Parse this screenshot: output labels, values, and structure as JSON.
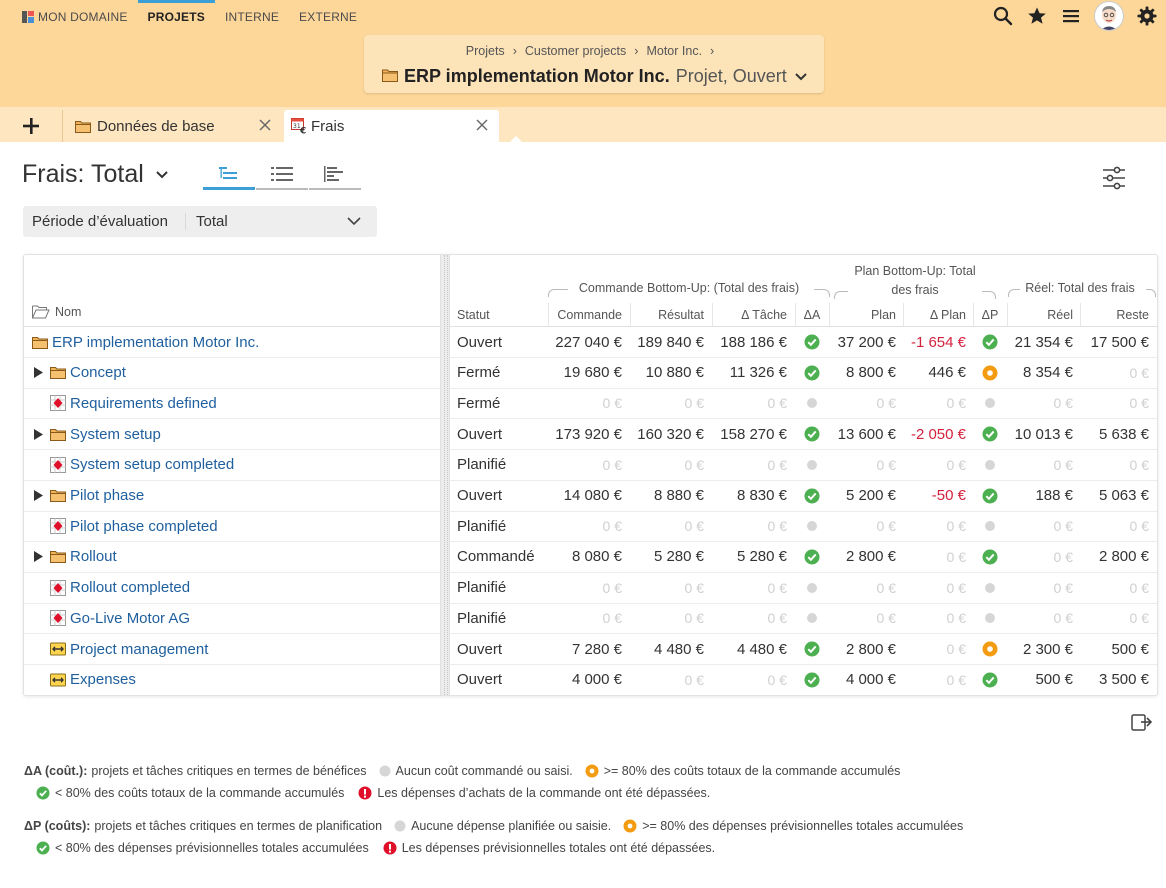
{
  "nav": {
    "items": [
      {
        "label": "MON DOMAINE"
      },
      {
        "label": "PROJETS"
      },
      {
        "label": "INTERNE"
      },
      {
        "label": "EXTERNE"
      }
    ]
  },
  "context": {
    "breadcrumb": [
      "Projets",
      "Customer projects",
      "Motor Inc."
    ],
    "breadcrumb_sep": "›",
    "title": "ERP implementation Motor Inc.",
    "subtitle": "Projet, Ouvert"
  },
  "tabs": [
    {
      "label": "Données de base"
    },
    {
      "label": "Frais"
    }
  ],
  "view": {
    "title": "Frais: Total"
  },
  "filter": {
    "label": "Période d’évaluation",
    "value": "Total"
  },
  "table": {
    "headers": {
      "name": "Nom",
      "status": "Statut",
      "commande": "Commande",
      "resultat": "Résultat",
      "delta_tache": "Δ Tâche",
      "delta_a": "ΔA",
      "plan": "Plan",
      "delta_plan": "Δ Plan",
      "delta_p": "ΔP",
      "reel": "Réel",
      "reste": "Reste"
    },
    "groups": {
      "commande": "Commande Bottom-Up: (Total des frais)",
      "plan_line1": "Plan Bottom-Up: Total",
      "plan_line2": "des frais",
      "reel": "Réel: Total des frais"
    },
    "rows": [
      {
        "name": "ERP implementation Motor Inc.",
        "icon": "folder",
        "expand": false,
        "indent": 0,
        "status": "Ouvert",
        "commande": "227 040 €",
        "resultat": "189 840 €",
        "delta_tache": "188 186 €",
        "da": "green",
        "plan": "37 200 €",
        "delta_plan": "-1 654 €",
        "delta_plan_neg": true,
        "dp": "green",
        "reel": "21 354 €",
        "reste": "17 500 €"
      },
      {
        "name": "Concept",
        "icon": "folder",
        "expand": true,
        "indent": 1,
        "status": "Fermé",
        "commande": "19 680 €",
        "resultat": "10 880 €",
        "delta_tache": "11 326 €",
        "da": "green",
        "plan": "8 800 €",
        "delta_plan": "446 €",
        "delta_plan_neg": false,
        "dp": "orange",
        "reel": "8 354 €",
        "reste": "0 €"
      },
      {
        "name": "Requirements defined",
        "icon": "milestone",
        "expand": false,
        "indent": 1,
        "status": "Fermé",
        "commande": "0 €",
        "resultat": "0 €",
        "delta_tache": "0 €",
        "da": "grey",
        "plan": "0 €",
        "delta_plan": "0 €",
        "delta_plan_neg": false,
        "dp": "grey",
        "reel": "0 €",
        "reste": "0 €"
      },
      {
        "name": "System setup",
        "icon": "folder",
        "expand": true,
        "indent": 1,
        "status": "Ouvert",
        "commande": "173 920 €",
        "resultat": "160 320 €",
        "delta_tache": "158 270 €",
        "da": "green",
        "plan": "13 600 €",
        "delta_plan": "-2 050 €",
        "delta_plan_neg": true,
        "dp": "green",
        "reel": "10 013 €",
        "reste": "5 638 €"
      },
      {
        "name": "System setup completed",
        "icon": "milestone",
        "expand": false,
        "indent": 1,
        "status": "Planifié",
        "commande": "0 €",
        "resultat": "0 €",
        "delta_tache": "0 €",
        "da": "grey",
        "plan": "0 €",
        "delta_plan": "0 €",
        "delta_plan_neg": false,
        "dp": "grey",
        "reel": "0 €",
        "reste": "0 €"
      },
      {
        "name": "Pilot phase",
        "icon": "folder",
        "expand": true,
        "indent": 1,
        "status": "Ouvert",
        "commande": "14 080 €",
        "resultat": "8 880 €",
        "delta_tache": "8 830 €",
        "da": "green",
        "plan": "5 200 €",
        "delta_plan": "-50 €",
        "delta_plan_neg": true,
        "dp": "green",
        "reel": "188 €",
        "reste": "5 063 €"
      },
      {
        "name": "Pilot phase completed",
        "icon": "milestone",
        "expand": false,
        "indent": 1,
        "status": "Planifié",
        "commande": "0 €",
        "resultat": "0 €",
        "delta_tache": "0 €",
        "da": "grey",
        "plan": "0 €",
        "delta_plan": "0 €",
        "delta_plan_neg": false,
        "dp": "grey",
        "reel": "0 €",
        "reste": "0 €"
      },
      {
        "name": "Rollout",
        "icon": "folder",
        "expand": true,
        "indent": 1,
        "status": "Commandé",
        "commande": "8 080 €",
        "resultat": "5 280 €",
        "delta_tache": "5 280 €",
        "da": "green",
        "plan": "2 800 €",
        "delta_plan": "0 €",
        "delta_plan_neg": false,
        "dp": "green",
        "reel": "0 €",
        "reste": "2 800 €"
      },
      {
        "name": "Rollout completed",
        "icon": "milestone",
        "expand": false,
        "indent": 1,
        "status": "Planifié",
        "commande": "0 €",
        "resultat": "0 €",
        "delta_tache": "0 €",
        "da": "grey",
        "plan": "0 €",
        "delta_plan": "0 €",
        "delta_plan_neg": false,
        "dp": "grey",
        "reel": "0 €",
        "reste": "0 €"
      },
      {
        "name": "Go-Live Motor AG",
        "icon": "milestone",
        "expand": false,
        "indent": 1,
        "status": "Planifié",
        "commande": "0 €",
        "resultat": "0 €",
        "delta_tache": "0 €",
        "da": "grey",
        "plan": "0 €",
        "delta_plan": "0 €",
        "delta_plan_neg": false,
        "dp": "grey",
        "reel": "0 €",
        "reste": "0 €"
      },
      {
        "name": "Project management",
        "icon": "task",
        "expand": false,
        "indent": 1,
        "status": "Ouvert",
        "commande": "7 280 €",
        "resultat": "4 480 €",
        "delta_tache": "4 480 €",
        "da": "green",
        "plan": "2 800 €",
        "delta_plan": "0 €",
        "delta_plan_neg": false,
        "dp": "orange",
        "reel": "2 300 €",
        "reste": "500 €"
      },
      {
        "name": "Expenses",
        "icon": "task",
        "expand": false,
        "indent": 1,
        "status": "Ouvert",
        "commande": "4 000 €",
        "resultat": "0 €",
        "delta_tache": "0 €",
        "da": "green",
        "plan": "4 000 €",
        "delta_plan": "0 €",
        "delta_plan_neg": false,
        "dp": "green",
        "reel": "500 €",
        "reste": "3 500 €"
      }
    ]
  },
  "legend": {
    "da": {
      "heading": "ΔA (coût.):",
      "text": "projets et tâches critiques en termes de bénéfices",
      "grey": "Aucun coût commandé ou saisi.",
      "orange": ">= 80% des coûts totaux de la commande accumulés",
      "green": "< 80% des coûts totaux de la commande accumulés",
      "red": "Les dépenses d’achats de la commande ont été dépassées."
    },
    "dp": {
      "heading": "ΔP (coûts):",
      "text": "projets et tâches critiques en termes de planification",
      "grey": "Aucune dépense planifiée ou saisie.",
      "orange": ">= 80% des dépenses prévisionnelles totales accumulées",
      "green": "< 80% des dépenses prévisionnelles totales accumulées",
      "red": "Les dépenses prévisionnelles totales ont été dépassées."
    }
  },
  "colors": {
    "header_bg": "#fdd699",
    "accent": "#3c9fd6",
    "link": "#1f5f9e",
    "green": "#4caf50",
    "orange": "#f39c12",
    "grey": "#d6d6d6",
    "red": "#e0102a",
    "negative": "#d4213d"
  },
  "icons": {
    "search": "search-icon",
    "star": "star-icon",
    "menu": "menu-icon",
    "settings": "gear-icon",
    "add": "plus-icon",
    "close": "close-icon",
    "folder": "folder-icon",
    "milestone": "milestone-icon",
    "task": "task-icon",
    "export": "export-icon"
  }
}
